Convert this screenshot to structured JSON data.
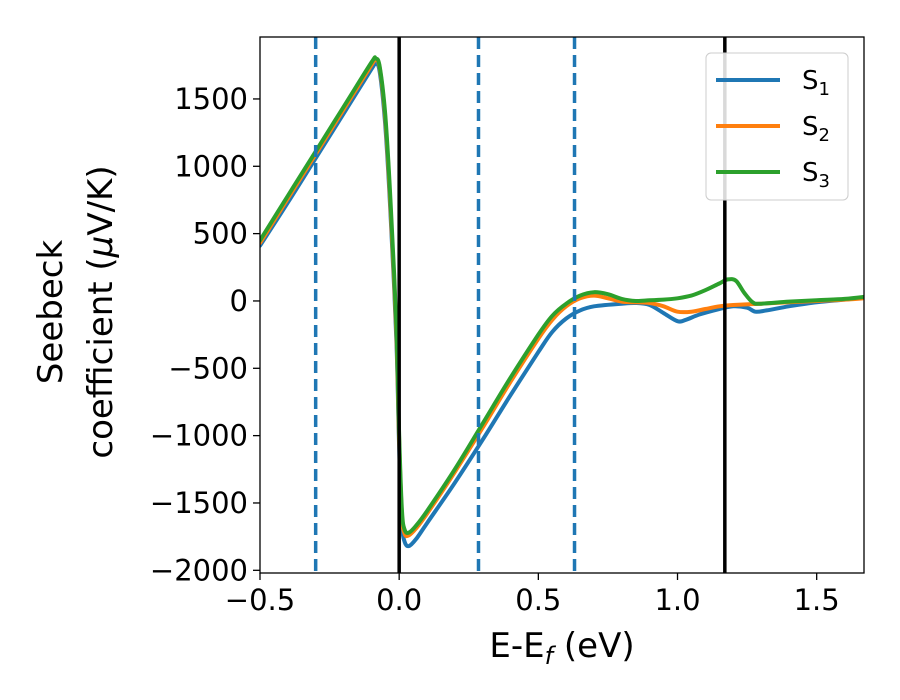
{
  "chart_data": {
    "type": "line",
    "xlabel_main": "E-E",
    "xlabel_sub": "f",
    "xlabel_unit": " (eV)",
    "ylabel_line1": "Seebeck",
    "ylabel_line2_text": "coefficient  (",
    "ylabel_line2_mu": "μ",
    "ylabel_line2_unit": "V/K)",
    "xlim": [
      -0.5,
      1.67
    ],
    "ylim": [
      -2020,
      1960
    ],
    "x_ticks": [
      -0.5,
      0.0,
      0.5,
      1.0,
      1.5
    ],
    "x_tick_labels": [
      "−0.5",
      "0.0",
      "0.5",
      "1.0",
      "1.5"
    ],
    "y_ticks": [
      -2000,
      -1500,
      -1000,
      -500,
      0,
      500,
      1000,
      1500
    ],
    "y_tick_labels": [
      "−2000",
      "−1500",
      "−1000",
      "−500",
      "0",
      "500",
      "1000",
      "1500"
    ],
    "grid": false,
    "legend_position": "top-right",
    "vlines_solid": [
      0.0,
      1.17
    ],
    "vlines_dashed": [
      -0.3,
      0.285,
      0.63
    ],
    "series": [
      {
        "name": "S",
        "sub": "1",
        "color": "#1f77b4",
        "points": [
          [
            -0.5,
            410
          ],
          [
            -0.4,
            730
          ],
          [
            -0.3,
            1060
          ],
          [
            -0.2,
            1390
          ],
          [
            -0.1,
            1720
          ],
          [
            -0.085,
            1760
          ],
          [
            -0.07,
            1700
          ],
          [
            -0.05,
            1300
          ],
          [
            -0.03,
            600
          ],
          [
            -0.01,
            -300
          ],
          [
            0.0,
            -1100
          ],
          [
            0.01,
            -1650
          ],
          [
            0.02,
            -1790
          ],
          [
            0.035,
            -1820
          ],
          [
            0.06,
            -1770
          ],
          [
            0.1,
            -1650
          ],
          [
            0.2,
            -1350
          ],
          [
            0.3,
            -1030
          ],
          [
            0.4,
            -700
          ],
          [
            0.5,
            -380
          ],
          [
            0.55,
            -230
          ],
          [
            0.6,
            -130
          ],
          [
            0.65,
            -70
          ],
          [
            0.7,
            -40
          ],
          [
            0.8,
            -20
          ],
          [
            0.85,
            -15
          ],
          [
            0.9,
            -30
          ],
          [
            0.95,
            -90
          ],
          [
            1.0,
            -150
          ],
          [
            1.03,
            -140
          ],
          [
            1.08,
            -100
          ],
          [
            1.15,
            -60
          ],
          [
            1.2,
            -40
          ],
          [
            1.25,
            -50
          ],
          [
            1.28,
            -80
          ],
          [
            1.32,
            -70
          ],
          [
            1.4,
            -40
          ],
          [
            1.5,
            -10
          ],
          [
            1.6,
            10
          ],
          [
            1.67,
            25
          ]
        ]
      },
      {
        "name": "S",
        "sub": "2",
        "color": "#ff7f0e",
        "points": [
          [
            -0.5,
            430
          ],
          [
            -0.4,
            760
          ],
          [
            -0.3,
            1090
          ],
          [
            -0.2,
            1420
          ],
          [
            -0.1,
            1750
          ],
          [
            -0.085,
            1790
          ],
          [
            -0.07,
            1730
          ],
          [
            -0.05,
            1350
          ],
          [
            -0.03,
            650
          ],
          [
            -0.01,
            -250
          ],
          [
            0.0,
            -1050
          ],
          [
            0.01,
            -1600
          ],
          [
            0.02,
            -1730
          ],
          [
            0.035,
            -1740
          ],
          [
            0.06,
            -1690
          ],
          [
            0.1,
            -1580
          ],
          [
            0.2,
            -1270
          ],
          [
            0.3,
            -940
          ],
          [
            0.4,
            -600
          ],
          [
            0.5,
            -280
          ],
          [
            0.55,
            -140
          ],
          [
            0.6,
            -40
          ],
          [
            0.65,
            20
          ],
          [
            0.7,
            40
          ],
          [
            0.75,
            20
          ],
          [
            0.8,
            -5
          ],
          [
            0.85,
            -10
          ],
          [
            0.9,
            -15
          ],
          [
            0.95,
            -40
          ],
          [
            1.0,
            -80
          ],
          [
            1.05,
            -80
          ],
          [
            1.1,
            -60
          ],
          [
            1.15,
            -40
          ],
          [
            1.2,
            -30
          ],
          [
            1.3,
            -20
          ],
          [
            1.4,
            -10
          ],
          [
            1.5,
            0
          ],
          [
            1.6,
            10
          ],
          [
            1.67,
            20
          ]
        ]
      },
      {
        "name": "S",
        "sub": "3",
        "color": "#2ca02c",
        "points": [
          [
            -0.5,
            450
          ],
          [
            -0.4,
            780
          ],
          [
            -0.3,
            1110
          ],
          [
            -0.2,
            1440
          ],
          [
            -0.1,
            1770
          ],
          [
            -0.085,
            1800
          ],
          [
            -0.07,
            1740
          ],
          [
            -0.05,
            1380
          ],
          [
            -0.03,
            700
          ],
          [
            -0.01,
            -200
          ],
          [
            0.0,
            -1000
          ],
          [
            0.01,
            -1560
          ],
          [
            0.02,
            -1700
          ],
          [
            0.035,
            -1720
          ],
          [
            0.06,
            -1670
          ],
          [
            0.1,
            -1560
          ],
          [
            0.2,
            -1250
          ],
          [
            0.3,
            -910
          ],
          [
            0.4,
            -570
          ],
          [
            0.5,
            -250
          ],
          [
            0.55,
            -110
          ],
          [
            0.6,
            -20
          ],
          [
            0.65,
            40
          ],
          [
            0.7,
            65
          ],
          [
            0.75,
            50
          ],
          [
            0.8,
            15
          ],
          [
            0.85,
            0
          ],
          [
            0.9,
            5
          ],
          [
            0.95,
            10
          ],
          [
            1.0,
            20
          ],
          [
            1.05,
            40
          ],
          [
            1.1,
            80
          ],
          [
            1.15,
            130
          ],
          [
            1.18,
            160
          ],
          [
            1.21,
            150
          ],
          [
            1.24,
            60
          ],
          [
            1.27,
            -10
          ],
          [
            1.3,
            -20
          ],
          [
            1.4,
            -5
          ],
          [
            1.5,
            5
          ],
          [
            1.6,
            15
          ],
          [
            1.67,
            30
          ]
        ]
      }
    ]
  }
}
